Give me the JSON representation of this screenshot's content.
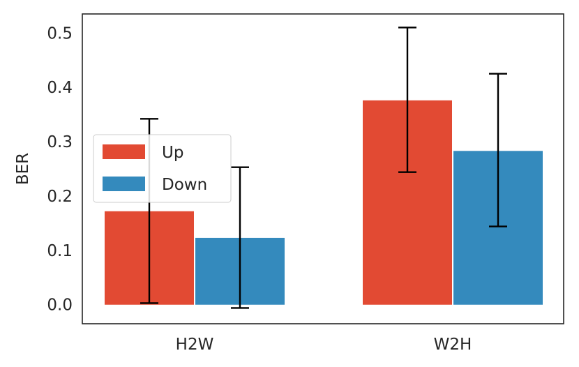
{
  "chart_data": {
    "type": "bar",
    "title": "",
    "xlabel": "",
    "ylabel": "BER",
    "categories": [
      "H2W",
      "W2H"
    ],
    "ylim": [
      -0.035,
      0.535
    ],
    "yticks": [
      "0.0",
      "0.1",
      "0.2",
      "0.3",
      "0.4",
      "0.5"
    ],
    "grid": false,
    "legend_position": "center-left",
    "series": [
      {
        "name": "Up",
        "color": "#E24A33",
        "values": [
          0.172,
          0.376
        ],
        "error_low": [
          0.003,
          0.244
        ],
        "error_high": [
          0.342,
          0.51
        ]
      },
      {
        "name": "Down",
        "color": "#348ABD",
        "values": [
          0.123,
          0.283
        ],
        "error_low": [
          -0.006,
          0.144
        ],
        "error_high": [
          0.253,
          0.425
        ]
      }
    ]
  }
}
